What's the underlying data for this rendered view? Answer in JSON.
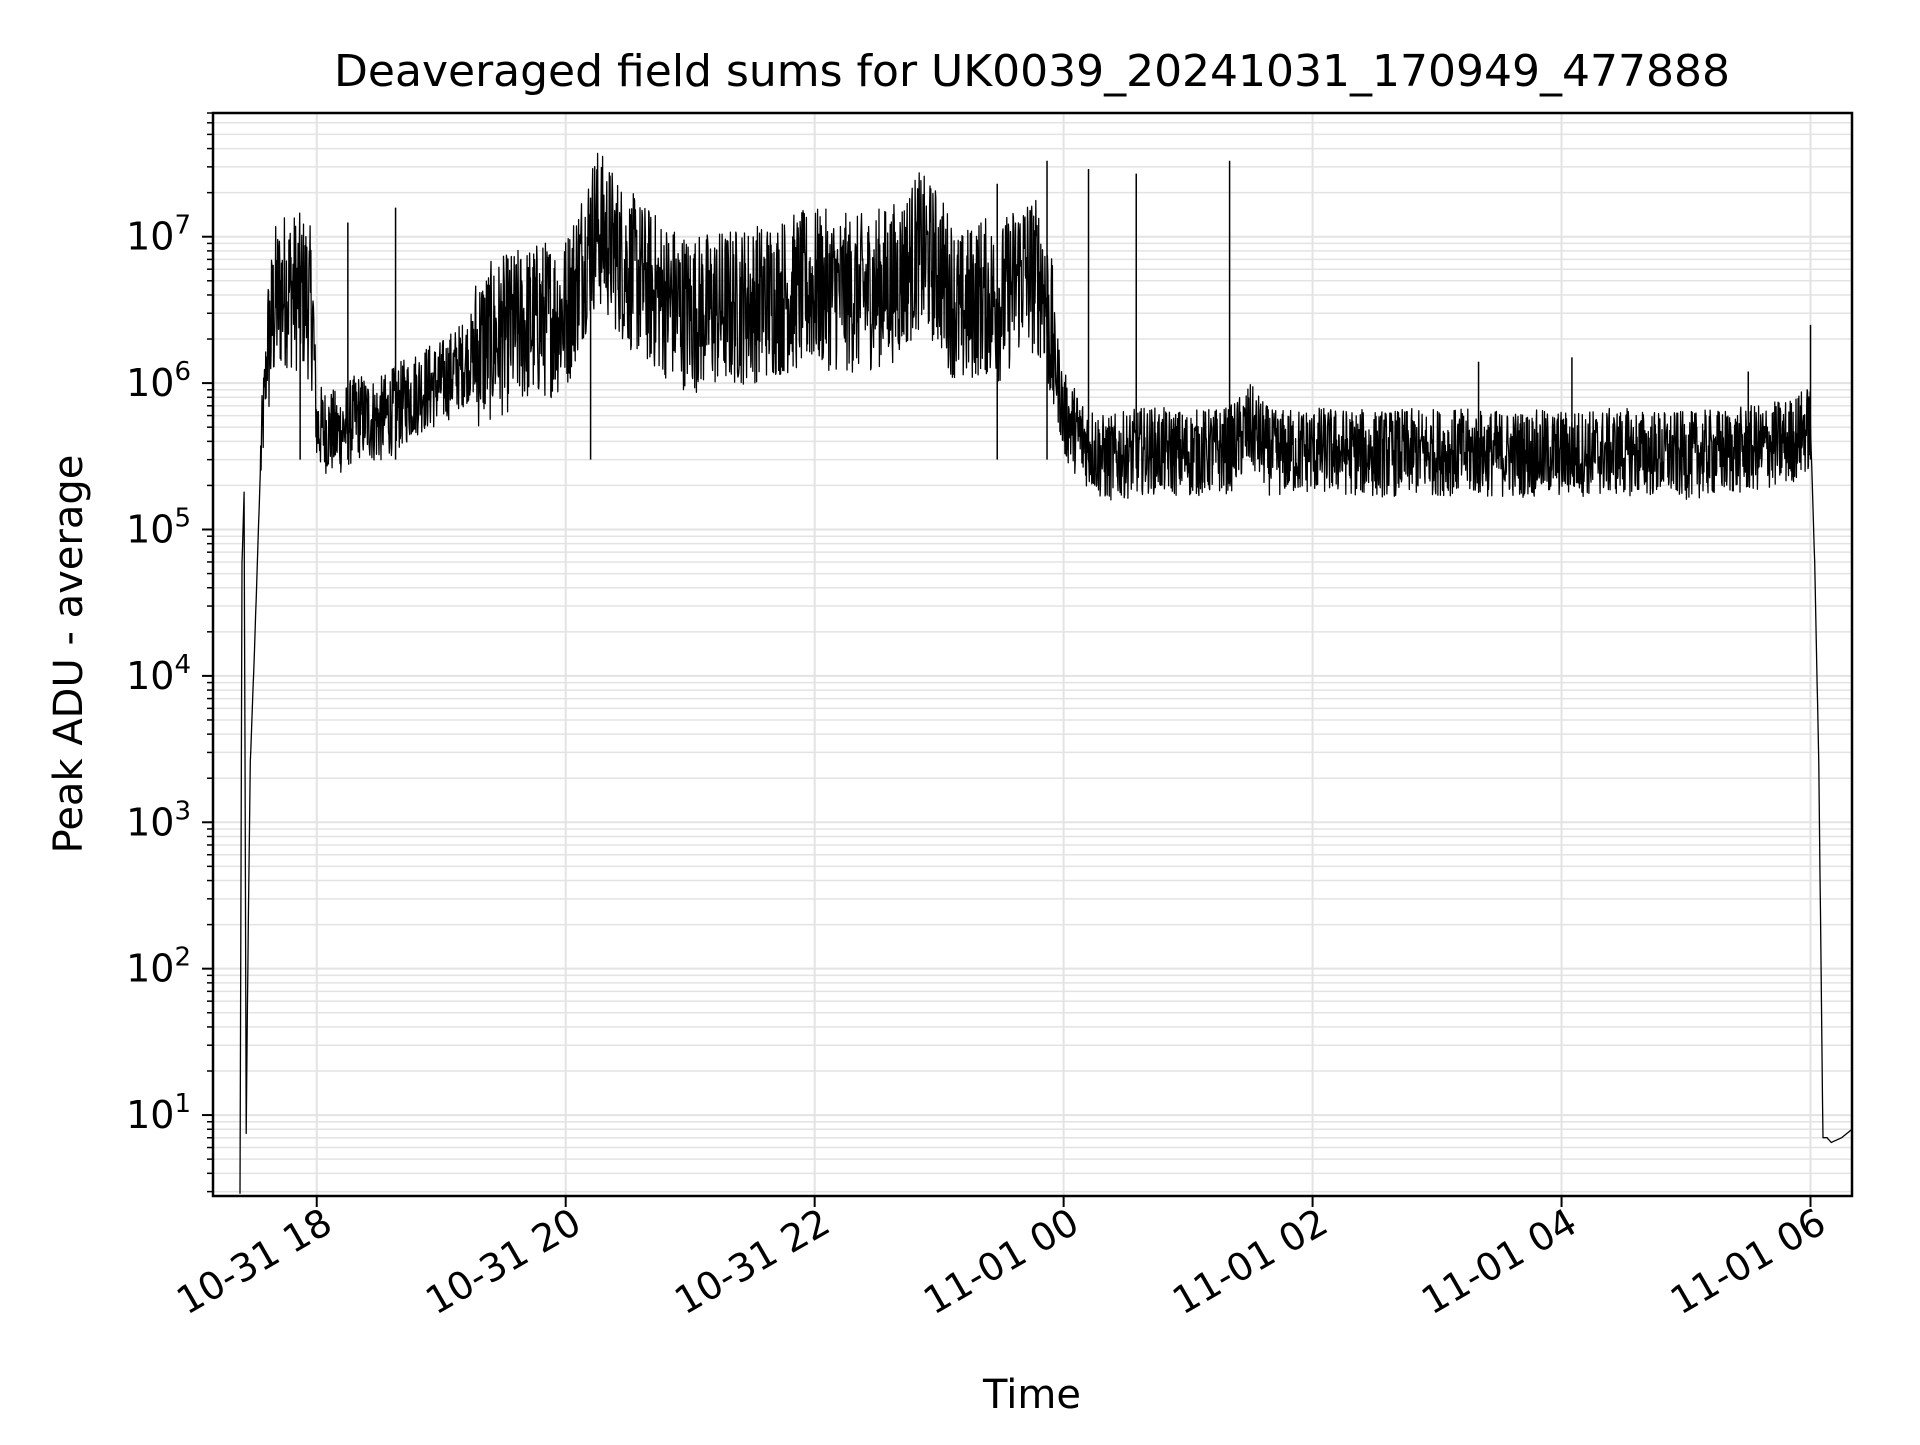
{
  "chart_data": {
    "type": "line",
    "title": "Deaveraged field sums for UK0039_20241031_170949_477888",
    "xlabel": "Time",
    "ylabel": "Peak ADU - average",
    "yscale": "log",
    "ylim": [
      2.8,
      70000000
    ],
    "xlim": [
      "2024-10-31 17:10",
      "2024-11-01 06:20"
    ],
    "grid": true,
    "line_color": "#000000",
    "grid_color": "#e3e3e3",
    "x_ticks": [
      {
        "value": "2024-10-31 18:00",
        "label": "10-31 18"
      },
      {
        "value": "2024-10-31 20:00",
        "label": "10-31 20"
      },
      {
        "value": "2024-10-31 22:00",
        "label": "10-31 22"
      },
      {
        "value": "2024-11-01 00:00",
        "label": "11-01 00"
      },
      {
        "value": "2024-11-01 02:00",
        "label": "11-01 02"
      },
      {
        "value": "2024-11-01 04:00",
        "label": "11-01 04"
      },
      {
        "value": "2024-11-01 06:00",
        "label": "11-01 06"
      }
    ],
    "y_ticks": [
      {
        "value": 10,
        "base": "10",
        "exp": "1"
      },
      {
        "value": 100,
        "base": "10",
        "exp": "2"
      },
      {
        "value": 1000,
        "base": "10",
        "exp": "3"
      },
      {
        "value": 10000,
        "base": "10",
        "exp": "4"
      },
      {
        "value": 100000,
        "base": "10",
        "exp": "5"
      },
      {
        "value": 1000000,
        "base": "10",
        "exp": "6"
      },
      {
        "value": 10000000,
        "base": "10",
        "exp": "7"
      }
    ],
    "series": [
      {
        "x": [
          "2024-10-31 17:23",
          "2024-10-31 17:24",
          "2024-10-31 17:25",
          "2024-10-31 17:26",
          "2024-10-31 17:27",
          "2024-10-31 17:28",
          "2024-10-31 17:30",
          "2024-10-31 17:33",
          "2024-10-31 17:36",
          "2024-10-31 17:40",
          "2024-10-31 17:45",
          "2024-10-31 17:50",
          "2024-10-31 17:55",
          "2024-10-31 17:58",
          "2024-10-31 18:00",
          "2024-10-31 18:10",
          "2024-10-31 18:20",
          "2024-10-31 18:30",
          "2024-10-31 18:40",
          "2024-10-31 18:50",
          "2024-10-31 19:00",
          "2024-10-31 19:20",
          "2024-10-31 19:40",
          "2024-10-31 20:00",
          "2024-10-31 20:10",
          "2024-10-31 20:15",
          "2024-10-31 20:30",
          "2024-10-31 20:45",
          "2024-10-31 21:00",
          "2024-10-31 21:30",
          "2024-10-31 22:00",
          "2024-10-31 22:20",
          "2024-10-31 22:40",
          "2024-10-31 22:50",
          "2024-10-31 23:00",
          "2024-10-31 23:10",
          "2024-10-31 23:20",
          "2024-10-31 23:30",
          "2024-10-31 23:40",
          "2024-10-31 23:50",
          "2024-11-01 00:00",
          "2024-11-01 00:10",
          "2024-11-01 00:20",
          "2024-11-01 00:40",
          "2024-11-01 01:00",
          "2024-11-01 01:20",
          "2024-11-01 01:30",
          "2024-11-01 01:40",
          "2024-11-01 02:00",
          "2024-11-01 02:30",
          "2024-11-01 03:00",
          "2024-11-01 03:30",
          "2024-11-01 04:00",
          "2024-11-01 04:30",
          "2024-11-01 05:00",
          "2024-11-01 05:30",
          "2024-11-01 05:50",
          "2024-11-01 06:00",
          "2024-11-01 06:02",
          "2024-11-01 06:04",
          "2024-11-01 06:06",
          "2024-11-01 06:08",
          "2024-11-01 06:10",
          "2024-11-01 06:15",
          "2024-11-01 06:20"
        ],
        "y": [
          2.9,
          60000,
          180000,
          7.5,
          200,
          2600,
          15000,
          300000,
          1500000,
          3500000,
          4500000,
          4200000,
          4000000,
          3000000,
          500000,
          450000,
          600000,
          550000,
          700000,
          900000,
          1000000,
          1800000,
          2500000,
          3000000,
          8000000,
          12000000,
          6000000,
          4000000,
          3000000,
          3500000,
          4500000,
          4000000,
          5000000,
          8000000,
          6000000,
          3000000,
          4000000,
          3500000,
          6000000,
          5000000,
          600000,
          400000,
          300000,
          350000,
          330000,
          350000,
          500000,
          330000,
          350000,
          330000,
          340000,
          330000,
          330000,
          340000,
          320000,
          350000,
          400000,
          500000,
          60000,
          2500,
          7,
          7,
          6.5,
          7,
          8
        ]
      }
    ],
    "spikes": [
      {
        "x": "2024-10-31 17:52",
        "y": 6300000
      },
      {
        "x": "2024-10-31 18:15",
        "y": 12500000
      },
      {
        "x": "2024-10-31 18:38",
        "y": 15800000
      },
      {
        "x": "2024-10-31 20:12",
        "y": 18500000
      },
      {
        "x": "2024-10-31 23:28",
        "y": 23000000
      },
      {
        "x": "2024-10-31 23:52",
        "y": 33000000
      },
      {
        "x": "2024-11-01 00:12",
        "y": 29000000
      },
      {
        "x": "2024-11-01 00:35",
        "y": 27000000
      },
      {
        "x": "2024-11-01 01:20",
        "y": 33000000
      },
      {
        "x": "2024-11-01 03:20",
        "y": 1400000
      },
      {
        "x": "2024-11-01 04:05",
        "y": 1500000
      },
      {
        "x": "2024-11-01 05:30",
        "y": 1200000
      },
      {
        "x": "2024-11-01 06:00",
        "y": 2500000
      }
    ]
  }
}
